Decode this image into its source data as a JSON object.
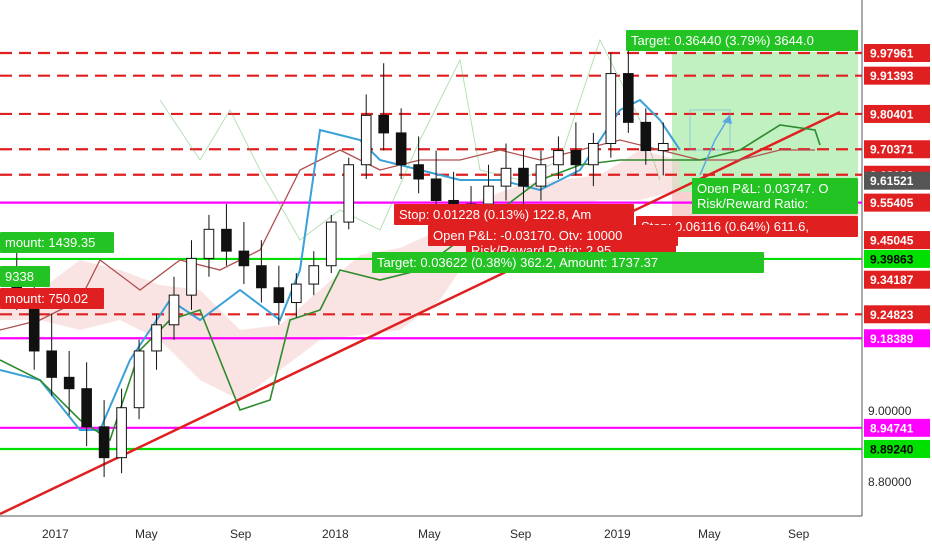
{
  "chart_data": {
    "type": "candlestick",
    "title": "",
    "y_axis": {
      "scale": "log",
      "range": [
        8.72,
        10.08
      ],
      "tick_labels": [
        "8.80000",
        "9.00000"
      ]
    },
    "x_axis": {
      "tick_labels": [
        "2017",
        "May",
        "Sep",
        "2018",
        "May",
        "Sep",
        "2019",
        "May",
        "Sep"
      ]
    },
    "grid": false,
    "ohlc": [
      {
        "x": 0,
        "o": 9.34,
        "h": 9.42,
        "l": 9.26,
        "c": 9.3
      },
      {
        "x": 1,
        "o": 9.3,
        "h": 9.36,
        "l": 9.1,
        "c": 9.15
      },
      {
        "x": 2,
        "o": 9.15,
        "h": 9.25,
        "l": 9.03,
        "c": 9.08
      },
      {
        "x": 3,
        "o": 9.08,
        "h": 9.15,
        "l": 8.98,
        "c": 9.05
      },
      {
        "x": 4,
        "o": 9.05,
        "h": 9.12,
        "l": 8.9,
        "c": 8.95
      },
      {
        "x": 5,
        "o": 8.95,
        "h": 9.02,
        "l": 8.82,
        "c": 8.87
      },
      {
        "x": 6,
        "o": 8.87,
        "h": 9.05,
        "l": 8.83,
        "c": 9.0
      },
      {
        "x": 7,
        "o": 9.0,
        "h": 9.18,
        "l": 8.97,
        "c": 9.15
      },
      {
        "x": 8,
        "o": 9.15,
        "h": 9.25,
        "l": 9.1,
        "c": 9.22
      },
      {
        "x": 9,
        "o": 9.22,
        "h": 9.35,
        "l": 9.18,
        "c": 9.3
      },
      {
        "x": 10,
        "o": 9.3,
        "h": 9.45,
        "l": 9.26,
        "c": 9.4
      },
      {
        "x": 11,
        "o": 9.4,
        "h": 9.52,
        "l": 9.35,
        "c": 9.48
      },
      {
        "x": 12,
        "o": 9.48,
        "h": 9.55,
        "l": 9.38,
        "c": 9.42
      },
      {
        "x": 13,
        "o": 9.42,
        "h": 9.5,
        "l": 9.33,
        "c": 9.38
      },
      {
        "x": 14,
        "o": 9.38,
        "h": 9.45,
        "l": 9.28,
        "c": 9.32
      },
      {
        "x": 15,
        "o": 9.32,
        "h": 9.38,
        "l": 9.22,
        "c": 9.28
      },
      {
        "x": 16,
        "o": 9.28,
        "h": 9.36,
        "l": 9.24,
        "c": 9.33
      },
      {
        "x": 17,
        "o": 9.33,
        "h": 9.42,
        "l": 9.3,
        "c": 9.38
      },
      {
        "x": 18,
        "o": 9.38,
        "h": 9.52,
        "l": 9.36,
        "c": 9.5
      },
      {
        "x": 19,
        "o": 9.5,
        "h": 9.68,
        "l": 9.48,
        "c": 9.66
      },
      {
        "x": 20,
        "o": 9.66,
        "h": 9.86,
        "l": 9.62,
        "c": 9.8
      },
      {
        "x": 21,
        "o": 9.8,
        "h": 9.95,
        "l": 9.7,
        "c": 9.75
      },
      {
        "x": 22,
        "o": 9.75,
        "h": 9.82,
        "l": 9.62,
        "c": 9.66
      },
      {
        "x": 23,
        "o": 9.66,
        "h": 9.74,
        "l": 9.58,
        "c": 9.62
      },
      {
        "x": 24,
        "o": 9.62,
        "h": 9.7,
        "l": 9.52,
        "c": 9.56
      },
      {
        "x": 25,
        "o": 9.56,
        "h": 9.64,
        "l": 9.47,
        "c": 9.52
      },
      {
        "x": 26,
        "o": 9.52,
        "h": 9.6,
        "l": 9.46,
        "c": 9.55
      },
      {
        "x": 27,
        "o": 9.55,
        "h": 9.66,
        "l": 9.5,
        "c": 9.6
      },
      {
        "x": 28,
        "o": 9.6,
        "h": 9.72,
        "l": 9.56,
        "c": 9.65
      },
      {
        "x": 29,
        "o": 9.65,
        "h": 9.7,
        "l": 9.55,
        "c": 9.6
      },
      {
        "x": 30,
        "o": 9.6,
        "h": 9.7,
        "l": 9.56,
        "c": 9.66
      },
      {
        "x": 31,
        "o": 9.66,
        "h": 9.74,
        "l": 9.62,
        "c": 9.7
      },
      {
        "x": 32,
        "o": 9.7,
        "h": 9.78,
        "l": 9.63,
        "c": 9.66
      },
      {
        "x": 33,
        "o": 9.66,
        "h": 9.75,
        "l": 9.6,
        "c": 9.72
      },
      {
        "x": 34,
        "o": 9.72,
        "h": 9.98,
        "l": 9.68,
        "c": 9.92
      },
      {
        "x": 35,
        "o": 9.92,
        "h": 9.99,
        "l": 9.75,
        "c": 9.78
      },
      {
        "x": 36,
        "o": 9.78,
        "h": 9.82,
        "l": 9.66,
        "c": 9.7
      },
      {
        "x": 37,
        "o": 9.7,
        "h": 9.78,
        "l": 9.63,
        "c": 9.72
      }
    ],
    "horizontal_levels": [
      {
        "value": 9.97961,
        "style": "dashed",
        "color": "#e02020"
      },
      {
        "value": 9.91393,
        "style": "dashed",
        "color": "#e02020"
      },
      {
        "value": 9.80401,
        "style": "dashed",
        "color": "#e02020"
      },
      {
        "value": 9.70371,
        "style": "dashed",
        "color": "#e02020"
      },
      {
        "value": 9.6319,
        "style": "dashed",
        "color": "#e02020"
      },
      {
        "value": 9.55405,
        "style": "solid",
        "color": "#ff00ff"
      },
      {
        "value": 9.39863,
        "style": "solid",
        "color": "#00e000"
      },
      {
        "value": 9.24823,
        "style": "dashed",
        "color": "#e02020"
      },
      {
        "value": 9.18389,
        "style": "solid",
        "color": "#ff00ff"
      },
      {
        "value": 8.94741,
        "style": "solid",
        "color": "#ff00ff"
      },
      {
        "value": 8.8924,
        "style": "solid",
        "color": "#00e000"
      }
    ],
    "price_tags": [
      {
        "label": "9.97961",
        "value": 9.97961,
        "color": "#e02020"
      },
      {
        "label": "9.91393",
        "value": 9.91393,
        "color": "#e02020"
      },
      {
        "label": "9.80401",
        "value": 9.80401,
        "color": "#e02020"
      },
      {
        "label": "9.70371",
        "value": 9.70371,
        "color": "#e02020"
      },
      {
        "label": "9.63190",
        "value": 9.6319,
        "color": "#e02020"
      },
      {
        "label": "9.61521",
        "value": 9.61521,
        "color": "#555555"
      },
      {
        "label": "9.55405",
        "value": 9.55405,
        "color": "#e02020"
      },
      {
        "label": "9.45045",
        "value": 9.45045,
        "color": "#e02020"
      },
      {
        "label": "9.39863",
        "value": 9.39863,
        "color": "#00e000"
      },
      {
        "label": "9.34187",
        "value": 9.34187,
        "color": "#e02020"
      },
      {
        "label": "9.24823",
        "value": 9.24823,
        "color": "#e02020"
      },
      {
        "label": "9.18389",
        "value": 9.18389,
        "color": "#ff00ff"
      },
      {
        "label": "8.94741",
        "value": 8.94741,
        "color": "#ff00ff"
      },
      {
        "label": "8.89240",
        "value": 8.8924,
        "color": "#00e000"
      }
    ],
    "position_boxes": [
      {
        "id": "target-long",
        "text": "Target: 0.36440 (3.79%) 3644.0",
        "color": "#22c322"
      },
      {
        "id": "open-pnl-long",
        "text": "Open P&L: 0.03747, Q",
        "color": "#22c322"
      },
      {
        "id": "rr-long",
        "text": "Risk/Reward Ratio:",
        "color": "#22c322"
      },
      {
        "id": "stop-long",
        "text": "Stop: 0.06116 (0.64%) 611.6,",
        "color": "#e02020"
      },
      {
        "id": "stop-short",
        "text": "Stop: 0.01228 (0.13%) 122.8, Am",
        "color": "#e02020"
      },
      {
        "id": "open-pnl-short",
        "text": "Open P&L: -0.03170, Qty: 10000",
        "color": "#e02020"
      },
      {
        "id": "rr-short",
        "text": "Risk/Reward Ratio: 2.95",
        "color": "#e02020"
      },
      {
        "id": "target-short",
        "text": "Target: 0.03622 (0.38%) 362.2, Amount: 1737.37",
        "color": "#22c322"
      },
      {
        "id": "amount-1",
        "text": "mount: 1439.35",
        "color": "#22c322"
      },
      {
        "id": "amount-2",
        "text": "9338",
        "color": "#22c322"
      },
      {
        "id": "amount-3",
        "text": "mount: 750.02",
        "color": "#e02020"
      }
    ]
  }
}
